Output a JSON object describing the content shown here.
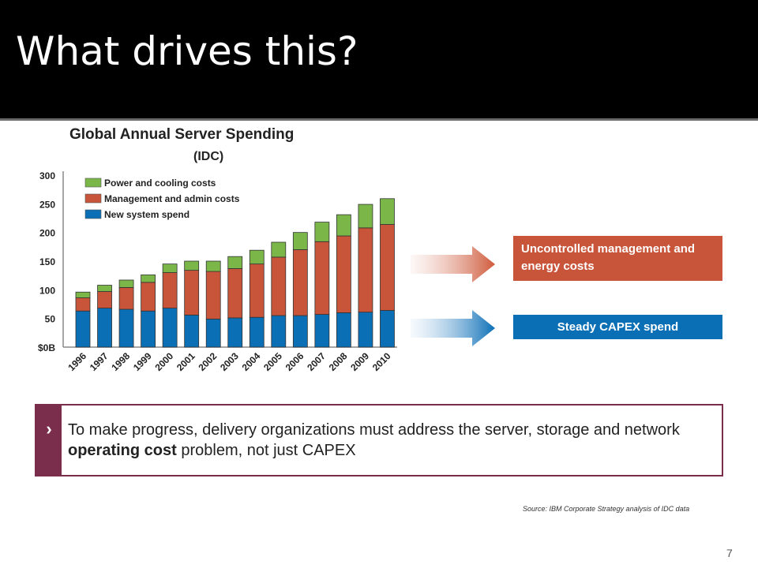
{
  "slide": {
    "title": "What drives this?",
    "source": "Source: IBM Corporate Strategy analysis of IDC data",
    "page_number": "7"
  },
  "callouts": {
    "management": "Uncontrolled management and energy costs",
    "capex": "Steady CAPEX spend"
  },
  "takeaway": {
    "text_before": "To make progress, delivery organizations must address the server, storage and network ",
    "text_bold": "operating cost",
    "text_after": " problem, not just CAPEX"
  },
  "colors": {
    "power": "#7ab648",
    "management": "#c8553a",
    "new_system": "#0b6fb6",
    "takeaway_accent": "#7a2e4c"
  },
  "chart_data": {
    "type": "bar",
    "stacked": true,
    "title": "Global Annual Server Spending",
    "subtitle": "(IDC)",
    "categories": [
      "1996",
      "1997",
      "1998",
      "1999",
      "2000",
      "2001",
      "2002",
      "2003",
      "2004",
      "2005",
      "2006",
      "2007",
      "2008",
      "2009",
      "2010"
    ],
    "series": [
      {
        "name": "New system spend",
        "values": [
          63,
          68,
          66,
          63,
          68,
          56,
          49,
          51,
          52,
          55,
          55,
          57,
          60,
          61,
          64
        ]
      },
      {
        "name": "Management and admin costs",
        "values": [
          23,
          29,
          38,
          50,
          62,
          78,
          83,
          86,
          93,
          102,
          115,
          127,
          134,
          147,
          150
        ]
      },
      {
        "name": "Power and cooling costs",
        "values": [
          10,
          11,
          13,
          13,
          15,
          16,
          18,
          21,
          24,
          26,
          30,
          34,
          37,
          41,
          45
        ]
      }
    ],
    "ylim": [
      0,
      300
    ],
    "yticks": [
      "$0B",
      "50",
      "100",
      "150",
      "200",
      "250",
      "300"
    ],
    "legend_order": [
      "Power and cooling costs",
      "Management and admin costs",
      "New system spend"
    ],
    "legend_position": "top-left"
  }
}
